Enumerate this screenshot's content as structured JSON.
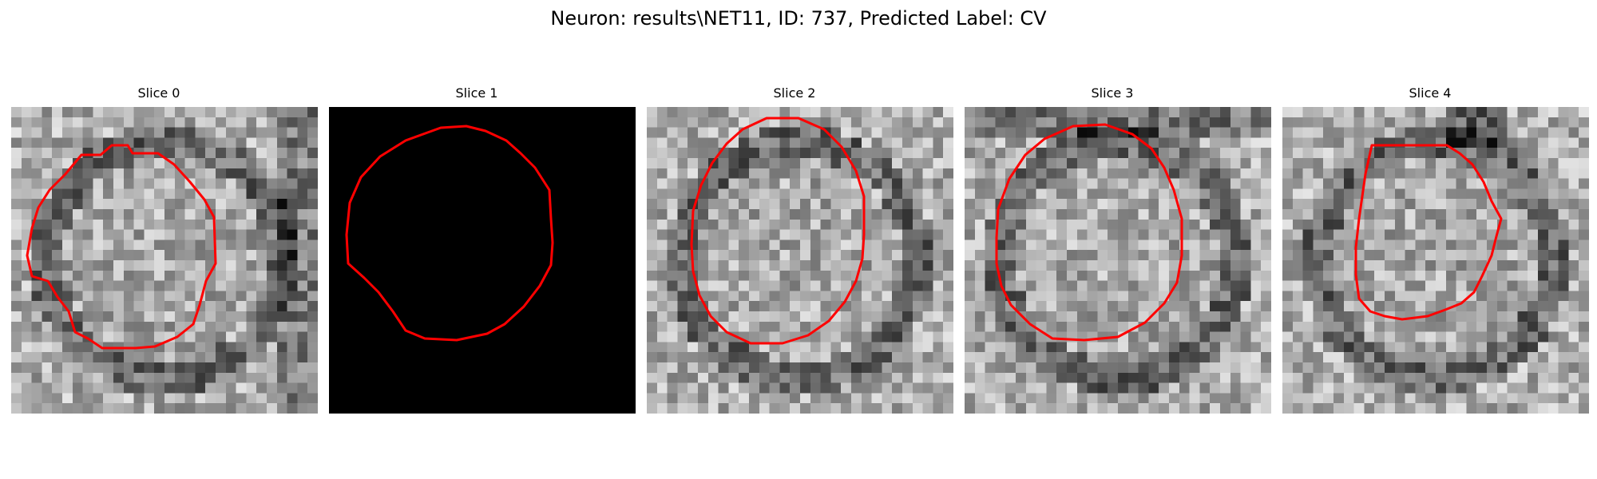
{
  "figure": {
    "title": "Neuron: results\\NET11, ID: 737, Predicted Label: CV"
  },
  "panels": [
    {
      "title": "Slice 0",
      "image": "grayscale-microscopy-slice",
      "blank": false
    },
    {
      "title": "Slice 1",
      "image": "black-slice",
      "blank": true
    },
    {
      "title": "Slice 2",
      "image": "grayscale-microscopy-slice",
      "blank": false
    },
    {
      "title": "Slice 3",
      "image": "grayscale-microscopy-slice",
      "blank": false
    },
    {
      "title": "Slice 4",
      "image": "grayscale-microscopy-slice",
      "blank": false
    }
  ],
  "colors": {
    "contour": "#ff0000",
    "background": "#ffffff"
  }
}
